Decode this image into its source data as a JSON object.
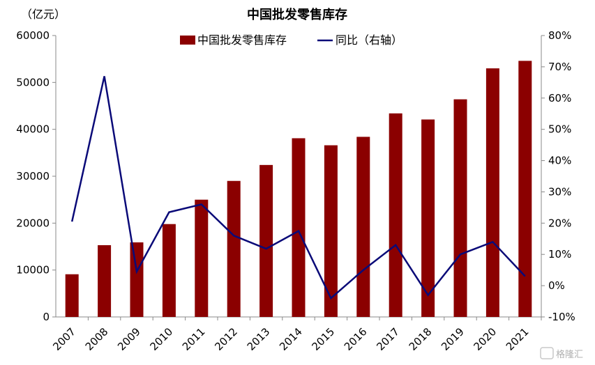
{
  "chart_data": {
    "type": "bar",
    "title": "中国批发零售库存",
    "y_unit_label": "（亿元）",
    "categories": [
      "2007",
      "2008",
      "2009",
      "2010",
      "2011",
      "2012",
      "2013",
      "2014",
      "2015",
      "2016",
      "2017",
      "2018",
      "2019",
      "2020",
      "2021"
    ],
    "series": [
      {
        "name": "中国批发零售库存",
        "type": "bar",
        "axis": "left",
        "color": "#8B0000",
        "values": [
          9100,
          15300,
          15900,
          19800,
          25000,
          29000,
          32400,
          38100,
          36600,
          38400,
          43400,
          42100,
          46400,
          53000,
          54600
        ]
      },
      {
        "name": "同比（右轴）",
        "type": "line",
        "axis": "right",
        "color": "#0A0A78",
        "values": [
          0.205,
          0.67,
          0.045,
          0.235,
          0.26,
          0.16,
          0.118,
          0.175,
          -0.04,
          0.05,
          0.13,
          -0.03,
          0.1,
          0.14,
          0.03
        ]
      }
    ],
    "y_left": {
      "min": 0,
      "max": 60000,
      "ticks": [
        "0",
        "10000",
        "20000",
        "30000",
        "40000",
        "50000",
        "60000"
      ]
    },
    "y_right": {
      "min": -0.1,
      "max": 0.8,
      "ticks": [
        "-10%",
        "0%",
        "10%",
        "20%",
        "30%",
        "40%",
        "50%",
        "60%",
        "70%",
        "80%"
      ]
    },
    "grid": false,
    "legend_position": "top"
  },
  "watermark": "格隆汇"
}
